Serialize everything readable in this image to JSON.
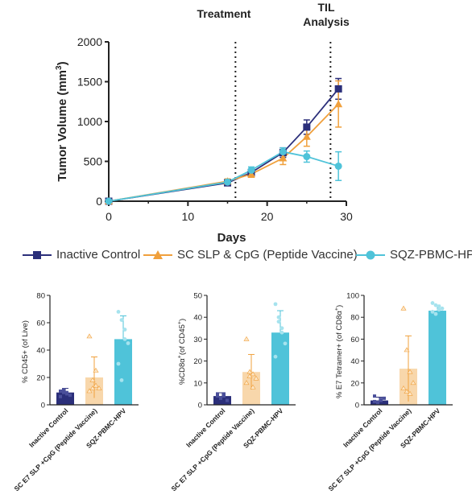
{
  "chart_data": [
    {
      "type": "line",
      "xlabel": "Days",
      "ylabel": "Tumor Volume (mm3)",
      "ylabel_main": "Tumor Volume (mm",
      "ylabel_sup": "3",
      "ylabel_close": ")",
      "xlim": [
        0,
        30
      ],
      "ylim": [
        0,
        2000
      ],
      "x_ticks": [
        "0",
        "10",
        "20",
        "30"
      ],
      "y_ticks": [
        "0",
        "500",
        "1000",
        "1500",
        "2000"
      ],
      "annotations": [
        {
          "x": 16,
          "label": "Treatment"
        },
        {
          "x": 28,
          "label_lines": [
            "TIL",
            "Analysis"
          ]
        }
      ],
      "series": [
        {
          "name": "Inactive Control",
          "color": "#2b2f7a",
          "marker": "square",
          "x": [
            0,
            15,
            18,
            22,
            25,
            29
          ],
          "y": [
            0,
            230,
            360,
            610,
            930,
            1410
          ],
          "err": [
            0,
            30,
            40,
            60,
            90,
            130
          ]
        },
        {
          "name": "SC SLP & CpG (Peptide Vaccine)",
          "color": "#f0a03c",
          "marker": "triangle",
          "x": [
            0,
            15,
            18,
            22,
            25,
            29
          ],
          "y": [
            0,
            250,
            340,
            540,
            810,
            1220
          ],
          "err": [
            0,
            30,
            40,
            80,
            120,
            290
          ]
        },
        {
          "name": "SQZ-PBMC-HPV",
          "color": "#4fc3d9",
          "marker": "circle",
          "x": [
            0,
            15,
            18,
            22,
            25,
            29
          ],
          "y": [
            0,
            240,
            390,
            620,
            560,
            440
          ],
          "err": [
            0,
            30,
            40,
            50,
            70,
            180
          ]
        }
      ]
    },
    {
      "type": "bar",
      "ylabel": "% CD45+ (of Live)",
      "ylim": [
        0,
        80
      ],
      "y_ticks": [
        "0",
        "20",
        "40",
        "60",
        "80"
      ],
      "categories": [
        "Inactive Control",
        "SC E7 SLP +CpG (Peptide Vaccine)",
        "SQZ-PBMC-HPV"
      ],
      "values": [
        9,
        20,
        48
      ],
      "err": [
        3,
        15,
        17
      ],
      "points": [
        [
          10,
          9,
          8,
          7,
          6,
          11,
          9
        ],
        [
          50,
          18,
          14,
          12,
          10,
          12,
          25
        ],
        [
          68,
          62,
          55,
          45,
          30,
          18,
          48
        ]
      ]
    },
    {
      "type": "bar",
      "ylabel": "%CD8α+(of CD45+)",
      "ylabel_main": "%CD8α",
      "ylabel_sup1": "+",
      "ylabel_mid": "(of CD45",
      "ylabel_sup2": "+",
      "ylabel_close": ")",
      "ylim": [
        0,
        50
      ],
      "y_ticks": [
        "0",
        "10",
        "20",
        "30",
        "40",
        "50"
      ],
      "categories": [
        "Inactive Control",
        "SC E7 SLP +CpG (Peptide Vaccine)",
        "SQZ-PBMC-HPV"
      ],
      "values": [
        4,
        15,
        33
      ],
      "err": [
        1.5,
        8,
        10
      ],
      "points": [
        [
          5,
          3,
          4,
          2,
          4,
          3,
          5
        ],
        [
          30,
          15,
          14,
          12,
          10,
          13,
          8
        ],
        [
          46,
          40,
          35,
          28,
          22,
          38,
          33
        ]
      ]
    },
    {
      "type": "bar",
      "ylabel": "% E7 Tetramer+ (of CD8α+)",
      "ylabel_main": "% E7 Tetramer+ (of CD8α",
      "ylabel_sup": "+",
      "ylabel_close": ")",
      "ylim": [
        0,
        100
      ],
      "y_ticks": [
        "0",
        "20",
        "40",
        "60",
        "80",
        "100"
      ],
      "categories": [
        "Inactive Control",
        "SC E7 SLP +CpG (Peptide Vaccine)",
        "SQZ-PBMC-HPV"
      ],
      "values": [
        4,
        33,
        86
      ],
      "err": [
        3,
        30,
        5
      ],
      "points": [
        [
          8,
          2,
          4,
          6,
          3,
          2,
          5
        ],
        [
          88,
          50,
          30,
          20,
          15,
          12,
          10
        ],
        [
          93,
          91,
          90,
          88,
          85,
          83,
          87
        ]
      ]
    }
  ]
}
